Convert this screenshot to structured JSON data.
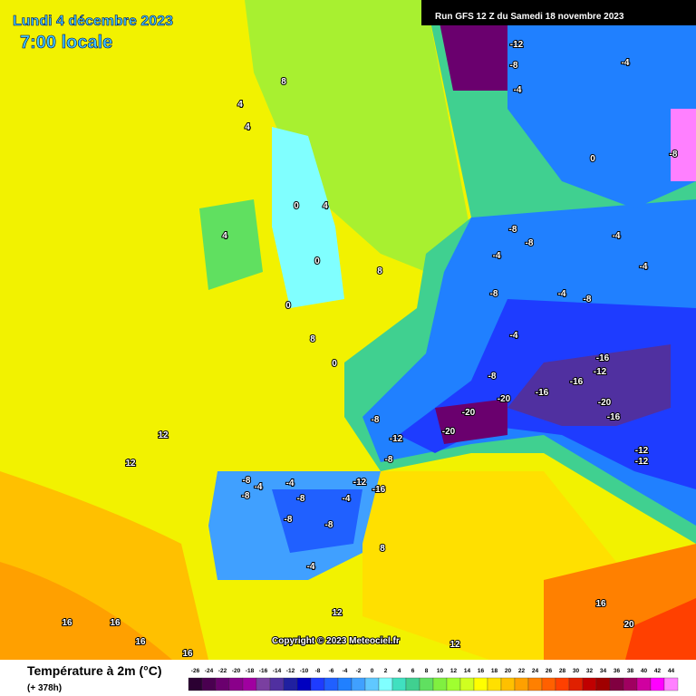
{
  "header": {
    "date": "Lundi 4 décembre 2023",
    "time": "7:00 locale",
    "run": "Run GFS 12 Z du Samedi 18 novembre 2023"
  },
  "copyright": "Copyright © 2023 Meteociel.fr",
  "legend": {
    "title": "Température à 2m (°C)",
    "lead": "(+ 378h)",
    "ticks": [
      -26,
      -24,
      -22,
      -20,
      -18,
      -16,
      -14,
      -12,
      -10,
      -8,
      -6,
      -4,
      -2,
      0,
      2,
      4,
      6,
      8,
      10,
      12,
      14,
      16,
      18,
      20,
      22,
      24,
      26,
      28,
      30,
      32,
      34,
      36,
      38,
      40,
      42,
      44
    ],
    "colors": [
      "#2b0032",
      "#4a0050",
      "#6a006e",
      "#8a008a",
      "#a000a0",
      "#7a3fa0",
      "#5030a0",
      "#2020a0",
      "#0000c0",
      "#1e3cff",
      "#2060ff",
      "#2080ff",
      "#40a0ff",
      "#60c8ff",
      "#80ffff",
      "#40e0c0",
      "#40d090",
      "#60e060",
      "#80f040",
      "#a0ff30",
      "#d0ff20",
      "#ffff00",
      "#ffe000",
      "#ffc000",
      "#ffa000",
      "#ff8000",
      "#ff6000",
      "#ff4000",
      "#e02000",
      "#c00000",
      "#a00000",
      "#800040",
      "#a00060",
      "#d000a0",
      "#ff00ff",
      "#ff80ff"
    ]
  },
  "map_labels": [
    "-12",
    "-8",
    "-4",
    "-4",
    "-8",
    "0",
    "8",
    "4",
    "4",
    "4",
    "0",
    "4",
    "0",
    "8",
    "0",
    "8",
    "0",
    "-8",
    "-8",
    "-4",
    "-4",
    "-4",
    "-8",
    "-4",
    "-8",
    "-4",
    "-8",
    "-16",
    "-12",
    "-16",
    "-16",
    "-20",
    "-20",
    "-16",
    "-20",
    "-20",
    "-12",
    "-8",
    "-12",
    "-12",
    "-8",
    "12",
    "12",
    "-8",
    "-4",
    "-4",
    "-12",
    "-16",
    "-8",
    "-8",
    "-4",
    "-8",
    "-8",
    "-4",
    "8",
    "12",
    "16",
    "16",
    "16",
    "16",
    "20",
    "12",
    "16"
  ]
}
